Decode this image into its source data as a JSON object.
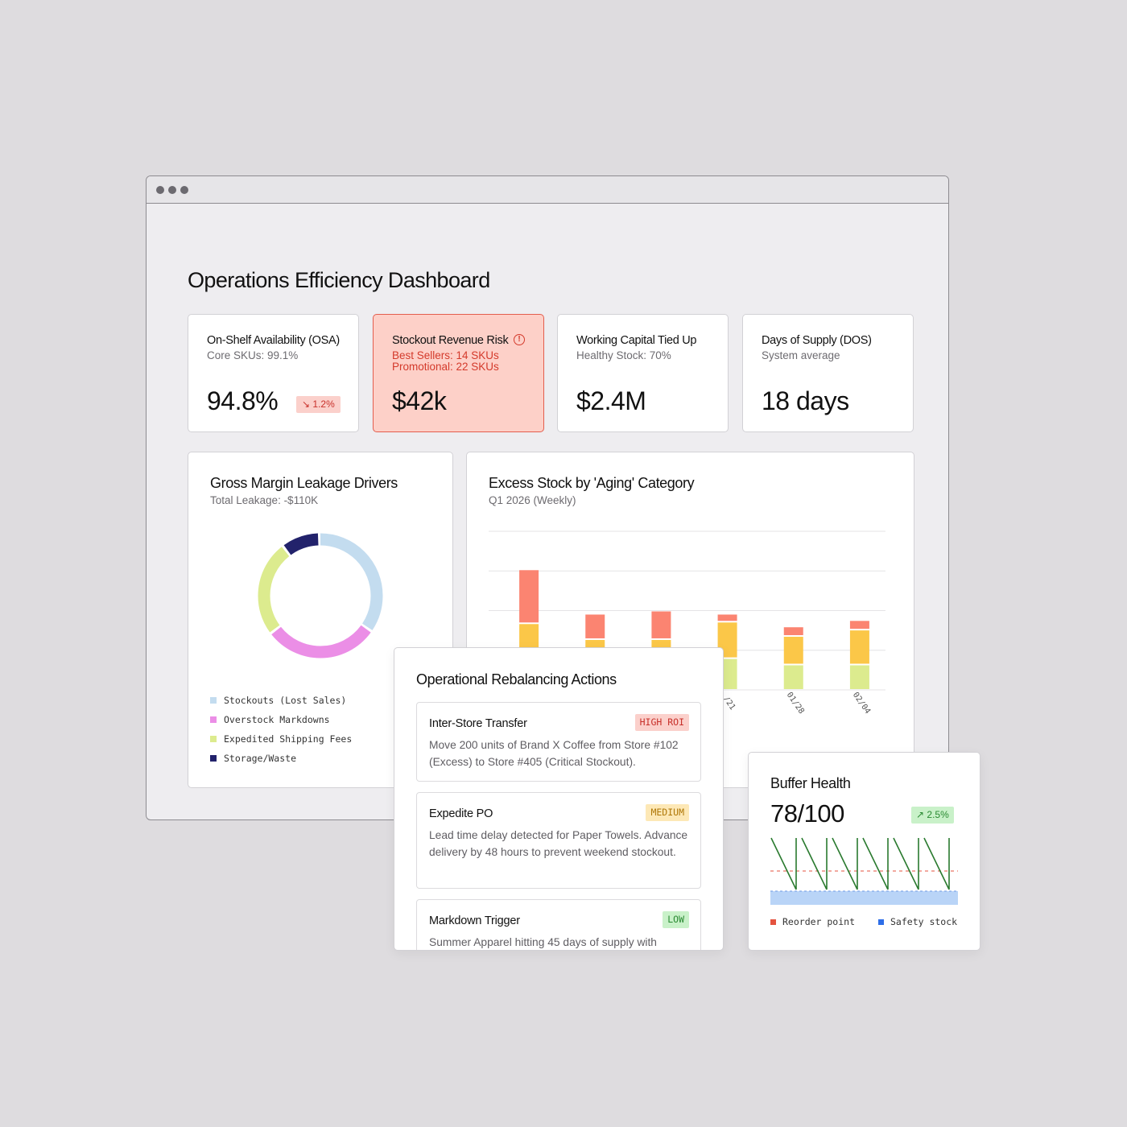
{
  "dashboard": {
    "title": "Operations Efficiency Dashboard"
  },
  "kpis": [
    {
      "title": "On-Shelf Availability (OSA)",
      "sub1": "Core SKUs: 99.1%",
      "value": "94.8%",
      "badge": "↘ 1.2%"
    },
    {
      "title": "Stockout Revenue Risk",
      "sub1": "Best Sellers: 14 SKUs",
      "sub2": "Promotional: 22 SKUs",
      "value": "$42k",
      "icon": "alert-circle-icon"
    },
    {
      "title": "Working Capital Tied Up",
      "sub1": "Healthy Stock: 70%",
      "value": "$2.4M"
    },
    {
      "title": "Days of Supply (DOS)",
      "sub1": "System average",
      "value": "18 days"
    }
  ],
  "leakage": {
    "title": "Gross Margin Leakage Drivers",
    "subtitle": "Total Leakage: -$110K",
    "legend": [
      "Stockouts (Lost Sales)",
      "Overstock Markdowns",
      "Expedited Shipping Fees",
      "Storage/Waste"
    ],
    "colors": [
      "#c3dcef",
      "#eb8ee6",
      "#dceb8e",
      "#22226b"
    ]
  },
  "excess": {
    "title": "Excess Stock by 'Aging' Category",
    "subtitle": "Q1 2026 (Weekly)",
    "tick_labels": [
      "/21",
      "01/28",
      "02/04"
    ]
  },
  "actions": {
    "title": "Operational Rebalancing Actions",
    "items": [
      {
        "title": "Inter-Store Transfer",
        "badge": "HIGH ROI",
        "desc": "Move 200 units of Brand X Coffee from Store #102 (Excess) to Store #405 (Critical Stockout)."
      },
      {
        "title": "Expedite PO",
        "badge": "MEDIUM",
        "desc": "Lead time delay detected for Paper Towels. Advance delivery by 48 hours to prevent weekend stockout."
      },
      {
        "title": "Markdown Trigger",
        "badge": "LOW",
        "desc": "Summer Apparel hitting 45 days of supply with"
      }
    ]
  },
  "buffer": {
    "title": "Buffer Health",
    "value": "78/100",
    "badge": "↗ 2.5%",
    "legend": [
      "Reorder point",
      "Safety stock"
    ]
  },
  "chart_data": [
    {
      "type": "pie",
      "title": "Gross Margin Leakage Drivers",
      "subtitle": "Total Leakage: -$110K",
      "categories": [
        "Stockouts (Lost Sales)",
        "Overstock Markdowns",
        "Expedited Shipping Fees",
        "Storage/Waste"
      ],
      "values": [
        35,
        30,
        25,
        10
      ],
      "colors": [
        "#c3dcef",
        "#eb8ee6",
        "#dceb8e",
        "#22226b"
      ],
      "legend": "bottom-left"
    },
    {
      "type": "bar",
      "title": "Excess Stock by 'Aging' Category",
      "subtitle": "Q1 2026 (Weekly)",
      "categories": [
        "",
        "",
        "",
        "/21",
        "01/28",
        "02/04"
      ],
      "series": [
        {
          "values": [
            2,
            2,
            2,
            2,
            1.6,
            1.6
          ],
          "color": "#dceb8e"
        },
        {
          "values": [
            2.2,
            1.2,
            1.2,
            2.3,
            1.8,
            2.2
          ],
          "color": "#fbc748"
        },
        {
          "values": [
            3.4,
            1.6,
            1.8,
            0.5,
            0.6,
            0.6
          ],
          "color": "#fb8471"
        }
      ],
      "ylim": [
        0,
        10
      ],
      "grid": true
    },
    {
      "type": "line",
      "title": "Buffer Health",
      "series": [
        {
          "name": "Reorder point",
          "color": "#e4533f"
        },
        {
          "name": "Safety stock",
          "color": "#2e6ee8"
        }
      ]
    }
  ]
}
